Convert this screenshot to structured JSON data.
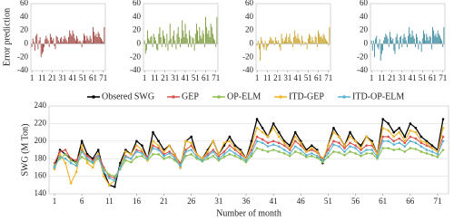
{
  "chart_data": [
    {
      "type": "bar",
      "y_label": "Error prediction",
      "color": "#a0453f",
      "grid": false,
      "x": [
        1,
        2,
        3,
        4,
        5,
        6,
        7,
        8,
        9,
        10,
        11,
        12,
        13,
        14,
        15,
        16,
        17,
        18,
        19,
        20,
        21,
        22,
        23,
        24,
        25,
        26,
        27,
        28,
        29,
        30,
        31,
        32,
        33,
        34,
        35,
        36,
        37,
        38,
        39,
        40,
        41,
        42,
        43,
        44,
        45,
        46,
        47,
        48,
        49,
        50,
        51,
        52,
        53,
        54,
        55,
        56,
        57,
        58,
        59,
        60,
        61,
        62,
        63,
        64,
        65,
        66,
        67,
        68,
        69,
        70,
        71,
        72
      ],
      "values": [
        -5,
        8,
        3,
        -10,
        12,
        15,
        -8,
        5,
        10,
        -20,
        -15,
        -12,
        -5,
        7,
        12,
        8,
        5,
        -5,
        15,
        10,
        5,
        8,
        -3,
        -8,
        12,
        10,
        5,
        2,
        8,
        10,
        3,
        7,
        12,
        8,
        5,
        2,
        10,
        20,
        15,
        12,
        20,
        15,
        8,
        5,
        12,
        8,
        3,
        5,
        3,
        -5,
        5,
        15,
        12,
        5,
        12,
        8,
        5,
        12,
        8,
        2,
        25,
        18,
        12,
        15,
        10,
        18,
        15,
        10,
        8,
        5,
        3,
        25
      ],
      "xlim": [
        0,
        73
      ],
      "xticks": [
        1,
        11,
        21,
        31,
        41,
        51,
        61,
        71
      ],
      "ylim": [
        -40,
        60
      ],
      "yticks": [
        -40,
        -20,
        0,
        20,
        40,
        60
      ]
    },
    {
      "type": "bar",
      "color": "#7a9a3a",
      "grid": false,
      "x": [
        1,
        2,
        3,
        4,
        5,
        6,
        7,
        8,
        9,
        10,
        11,
        12,
        13,
        14,
        15,
        16,
        17,
        18,
        19,
        20,
        21,
        22,
        23,
        24,
        25,
        26,
        27,
        28,
        29,
        30,
        31,
        32,
        33,
        34,
        35,
        36,
        37,
        38,
        39,
        40,
        41,
        42,
        43,
        44,
        45,
        46,
        47,
        48,
        49,
        50,
        51,
        52,
        53,
        54,
        55,
        56,
        57,
        58,
        59,
        60,
        61,
        62,
        63,
        64,
        65,
        66,
        67,
        68,
        69,
        70,
        71,
        72
      ],
      "values": [
        5,
        -15,
        -10,
        20,
        8,
        5,
        10,
        12,
        -5,
        15,
        10,
        5,
        -8,
        -10,
        15,
        25,
        10,
        -5,
        20,
        12,
        8,
        -5,
        15,
        -10,
        5,
        30,
        8,
        -5,
        12,
        20,
        5,
        -8,
        15,
        25,
        10,
        -5,
        8,
        35,
        20,
        10,
        30,
        15,
        8,
        -5,
        20,
        12,
        -5,
        10,
        8,
        -10,
        15,
        30,
        20,
        5,
        25,
        12,
        8,
        20,
        15,
        -5,
        40,
        25,
        15,
        20,
        10,
        30,
        25,
        15,
        8,
        5,
        -5,
        40
      ],
      "xlim": [
        0,
        73
      ],
      "xticks": [
        1,
        11,
        21,
        31,
        41,
        51,
        61,
        71
      ],
      "ylim": [
        -40,
        60
      ],
      "yticks": [
        -40,
        -20,
        0,
        20,
        40,
        60
      ]
    },
    {
      "type": "bar",
      "color": "#c9a227",
      "grid": false,
      "x": [
        1,
        2,
        3,
        4,
        5,
        6,
        7,
        8,
        9,
        10,
        11,
        12,
        13,
        14,
        15,
        16,
        17,
        18,
        19,
        20,
        21,
        22,
        23,
        24,
        25,
        26,
        27,
        28,
        29,
        30,
        31,
        32,
        33,
        34,
        35,
        36,
        37,
        38,
        39,
        40,
        41,
        42,
        43,
        44,
        45,
        46,
        47,
        48,
        49,
        50,
        51,
        52,
        53,
        54,
        55,
        56,
        57,
        58,
        59,
        60,
        61,
        62,
        63,
        64,
        65,
        66,
        67,
        68,
        69,
        70,
        71,
        72
      ],
      "values": [
        -3,
        5,
        -8,
        -25,
        10,
        5,
        -5,
        -8,
        5,
        -10,
        -5,
        -3,
        5,
        10,
        8,
        5,
        5,
        -2,
        10,
        5,
        2,
        5,
        -5,
        -10,
        15,
        8,
        3,
        5,
        10,
        15,
        3,
        10,
        15,
        5,
        3,
        -5,
        10,
        20,
        12,
        8,
        15,
        8,
        5,
        -3,
        12,
        5,
        -2,
        3,
        2,
        -8,
        8,
        15,
        12,
        3,
        10,
        5,
        2,
        12,
        10,
        -5,
        20,
        15,
        10,
        12,
        8,
        15,
        12,
        8,
        5,
        3,
        -3,
        25
      ],
      "xlim": [
        0,
        73
      ],
      "xticks": [
        1,
        11,
        21,
        31,
        41,
        51,
        61,
        71
      ],
      "ylim": [
        -40,
        60
      ],
      "yticks": [
        -40,
        -20,
        0,
        20,
        40,
        60
      ]
    },
    {
      "type": "bar",
      "color": "#3a8a9f",
      "grid": false,
      "x": [
        1,
        2,
        3,
        4,
        5,
        6,
        7,
        8,
        9,
        10,
        11,
        12,
        13,
        14,
        15,
        16,
        17,
        18,
        19,
        20,
        21,
        22,
        23,
        24,
        25,
        26,
        27,
        28,
        29,
        30,
        31,
        32,
        33,
        34,
        35,
        36,
        37,
        38,
        39,
        40,
        41,
        42,
        43,
        44,
        45,
        46,
        47,
        48,
        49,
        50,
        51,
        52,
        53,
        54,
        55,
        56,
        57,
        58,
        59,
        60,
        61,
        62,
        63,
        64,
        65,
        66,
        67,
        68,
        69,
        70,
        71,
        72
      ],
      "values": [
        5,
        -10,
        5,
        -20,
        8,
        12,
        -5,
        -8,
        7,
        -25,
        -15,
        -10,
        5,
        10,
        15,
        12,
        8,
        -5,
        18,
        10,
        5,
        8,
        -10,
        -15,
        10,
        15,
        5,
        -8,
        10,
        12,
        -5,
        8,
        15,
        10,
        5,
        -5,
        12,
        25,
        15,
        10,
        20,
        12,
        8,
        -5,
        15,
        10,
        -8,
        5,
        3,
        -12,
        8,
        20,
        15,
        5,
        15,
        10,
        5,
        12,
        10,
        -8,
        25,
        20,
        12,
        15,
        10,
        20,
        15,
        12,
        8,
        5,
        -5,
        25
      ],
      "xlim": [
        0,
        73
      ],
      "xticks": [
        1,
        11,
        21,
        31,
        41,
        51,
        61,
        71
      ],
      "ylim": [
        -40,
        60
      ],
      "yticks": [
        -40,
        -20,
        0,
        20,
        40,
        60
      ]
    },
    {
      "type": "line",
      "x_label": "Number of month",
      "y_label": "SWG (M Ton)",
      "grid": true,
      "legend": "top",
      "x": [
        1,
        2,
        3,
        4,
        5,
        6,
        7,
        8,
        9,
        10,
        11,
        12,
        13,
        14,
        15,
        16,
        17,
        18,
        19,
        20,
        21,
        22,
        23,
        24,
        25,
        26,
        27,
        28,
        29,
        30,
        31,
        32,
        33,
        34,
        35,
        36,
        37,
        38,
        39,
        40,
        41,
        42,
        43,
        44,
        45,
        46,
        47,
        48,
        49,
        50,
        51,
        52,
        53,
        54,
        55,
        56,
        57,
        58,
        59,
        60,
        61,
        62,
        63,
        64,
        65,
        66,
        67,
        68,
        69,
        70,
        71,
        72
      ],
      "xlim": [
        0,
        73
      ],
      "xticks": [
        1,
        6,
        11,
        16,
        21,
        26,
        31,
        36,
        41,
        46,
        51,
        56,
        61,
        66,
        71
      ],
      "ylim": [
        140,
        240
      ],
      "yticks": [
        140,
        160,
        180,
        200,
        220,
        240
      ],
      "series": [
        {
          "name": "Obsered SWG",
          "color": "#000000",
          "values": [
            170,
            190,
            185,
            180,
            175,
            200,
            185,
            180,
            190,
            165,
            150,
            148,
            175,
            190,
            185,
            200,
            195,
            180,
            210,
            200,
            190,
            195,
            185,
            170,
            200,
            205,
            185,
            180,
            190,
            200,
            185,
            195,
            205,
            195,
            190,
            180,
            200,
            225,
            215,
            205,
            220,
            210,
            200,
            195,
            210,
            200,
            190,
            195,
            190,
            175,
            195,
            215,
            205,
            195,
            210,
            200,
            195,
            205,
            200,
            185,
            225,
            220,
            210,
            215,
            205,
            220,
            215,
            205,
            200,
            195,
            190,
            225
          ]
        },
        {
          "name": "GEP",
          "color": "#d9534f",
          "values": [
            175,
            188,
            190,
            180,
            178,
            190,
            183,
            178,
            185,
            170,
            160,
            158,
            170,
            183,
            180,
            190,
            188,
            182,
            195,
            192,
            185,
            188,
            183,
            175,
            190,
            195,
            185,
            180,
            185,
            190,
            183,
            188,
            195,
            190,
            185,
            180,
            190,
            205,
            202,
            198,
            200,
            198,
            195,
            190,
            200,
            195,
            188,
            190,
            187,
            180,
            190,
            200,
            198,
            192,
            198,
            195,
            190,
            195,
            195,
            185,
            205,
            205,
            200,
            203,
            198,
            205,
            203,
            198,
            195,
            192,
            188,
            205
          ]
        },
        {
          "name": "OP-ELM",
          "color": "#8cbf4f",
          "values": [
            172,
            180,
            185,
            178,
            175,
            182,
            178,
            175,
            180,
            168,
            162,
            160,
            168,
            178,
            176,
            182,
            183,
            178,
            185,
            185,
            180,
            182,
            178,
            172,
            183,
            185,
            180,
            177,
            180,
            183,
            178,
            182,
            185,
            183,
            180,
            176,
            183,
            192,
            190,
            188,
            190,
            188,
            186,
            183,
            188,
            186,
            182,
            183,
            181,
            176,
            182,
            188,
            187,
            184,
            188,
            186,
            183,
            186,
            186,
            180,
            192,
            192,
            190,
            191,
            188,
            192,
            191,
            188,
            186,
            184,
            182,
            190
          ]
        },
        {
          "name": "ITD-GEP",
          "color": "#f0b429",
          "values": [
            168,
            185,
            175,
            152,
            165,
            195,
            175,
            170,
            185,
            160,
            150,
            155,
            170,
            188,
            185,
            195,
            190,
            178,
            200,
            195,
            188,
            195,
            185,
            170,
            200,
            198,
            185,
            180,
            188,
            200,
            185,
            198,
            200,
            192,
            188,
            180,
            195,
            215,
            210,
            205,
            215,
            205,
            198,
            192,
            205,
            198,
            188,
            192,
            188,
            178,
            195,
            210,
            205,
            195,
            205,
            200,
            192,
            205,
            198,
            185,
            215,
            212,
            205,
            210,
            200,
            212,
            210,
            200,
            198,
            192,
            188,
            215
          ]
        },
        {
          "name": "ITD-OP-ELM",
          "color": "#5ab4d6",
          "values": [
            170,
            182,
            180,
            175,
            172,
            188,
            180,
            176,
            183,
            165,
            158,
            155,
            170,
            182,
            180,
            188,
            186,
            180,
            192,
            190,
            183,
            186,
            180,
            172,
            188,
            190,
            182,
            178,
            183,
            188,
            180,
            185,
            190,
            186,
            182,
            178,
            186,
            200,
            198,
            194,
            196,
            194,
            190,
            186,
            194,
            190,
            184,
            186,
            183,
            178,
            186,
            196,
            194,
            188,
            194,
            192,
            186,
            190,
            190,
            182,
            200,
            200,
            196,
            198,
            194,
            200,
            198,
            194,
            190,
            188,
            185,
            200
          ]
        }
      ]
    }
  ]
}
